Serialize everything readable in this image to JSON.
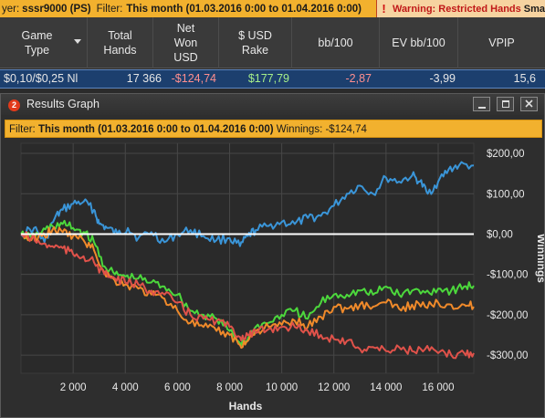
{
  "filterbar": {
    "player_label": "yer:",
    "player_name": "sssr9000 (PS)",
    "filter_label": "Filter:",
    "filter_value": "This month (01.03.2016 0:00 to 01.04.2016 0:00)",
    "warning_icon": "!",
    "warning": "Warning: Restricted Hands",
    "warning_cut": "Sma"
  },
  "table": {
    "columns": [
      {
        "label": "Game\nType"
      },
      {
        "label": "Total\nHands"
      },
      {
        "label": "Net\nWon\nUSD"
      },
      {
        "label": "$ USD\nRake"
      },
      {
        "label": "bb/100"
      },
      {
        "label": "EV bb/100"
      },
      {
        "label": "VPIP"
      }
    ],
    "row": {
      "game_type": "$0,10/$0,25 Nl",
      "total_hands": "17 366",
      "net_won": "-$124,74",
      "rake": "$177,79",
      "bb100": "-2,87",
      "ev_bb100": "-3,99",
      "vpip": "15,6"
    },
    "colors": {
      "negative": "#ff8f8f",
      "positive": "#a6ef8a"
    }
  },
  "window": {
    "badge": "2",
    "title": "Results Graph",
    "filter_label": "Filter:",
    "filter_value": "This month (01.03.2016 0:00 to 01.04.2016 0:00)",
    "winnings_label": "Winnings:",
    "winnings_value": "-$124,74"
  },
  "chart_data": {
    "type": "line",
    "xlabel": "Hands",
    "ylabel": "Winnings",
    "xlim": [
      0,
      17366
    ],
    "ylim": [
      -345,
      225
    ],
    "x_ticks": [
      2000,
      4000,
      6000,
      8000,
      10000,
      12000,
      14000,
      16000
    ],
    "x_tick_labels": [
      "2 000",
      "4 000",
      "6 000",
      "8 000",
      "10 000",
      "12 000",
      "14 000",
      "16 000"
    ],
    "y_ticks": [
      200,
      100,
      0,
      -100,
      -200,
      -300
    ],
    "y_tick_labels": [
      "$200,00",
      "$100,00",
      "$0,00",
      "-$100,00",
      "-$200,00",
      "-$300,00"
    ],
    "grid": true,
    "legend": "none",
    "series": [
      {
        "color": "#3a95d8",
        "x": [
          0,
          500,
          900,
          1300,
          1600,
          2000,
          2400,
          2800,
          3000,
          3300,
          3700,
          4100,
          4500,
          5000,
          5500,
          6000,
          6500,
          7000,
          7500,
          8000,
          8400,
          8700,
          9000,
          9500,
          10000,
          10500,
          11000,
          11500,
          12000,
          12500,
          13000,
          13500,
          14000,
          14500,
          15000,
          15300,
          15600,
          16000,
          16400,
          16800,
          17366
        ],
        "y": [
          0,
          15,
          -20,
          40,
          60,
          75,
          80,
          60,
          25,
          15,
          0,
          15,
          -10,
          5,
          -20,
          0,
          10,
          -5,
          -15,
          -10,
          -30,
          -5,
          10,
          20,
          30,
          25,
          40,
          45,
          70,
          100,
          120,
          100,
          140,
          130,
          145,
          130,
          100,
          130,
          160,
          170,
          170
        ]
      },
      {
        "color": "#4cd83c",
        "x": [
          0,
          400,
          800,
          1200,
          1600,
          2000,
          2400,
          2800,
          3200,
          3600,
          4000,
          4500,
          5000,
          5500,
          6000,
          6500,
          7000,
          7500,
          8000,
          8400,
          8700,
          9000,
          9500,
          10000,
          10500,
          11000,
          11500,
          12000,
          12500,
          13000,
          13500,
          14000,
          14500,
          15000,
          15500,
          16000,
          16500,
          17000,
          17366
        ],
        "y": [
          0,
          -10,
          5,
          20,
          25,
          15,
          5,
          -20,
          -80,
          -100,
          -105,
          -110,
          -120,
          -130,
          -150,
          -190,
          -200,
          -210,
          -240,
          -270,
          -260,
          -230,
          -220,
          -200,
          -190,
          -210,
          -170,
          -150,
          -150,
          -140,
          -150,
          -130,
          -150,
          -140,
          -145,
          -135,
          -140,
          -130,
          -128
        ]
      },
      {
        "color": "#f08a2a",
        "x": [
          0,
          400,
          800,
          1200,
          1600,
          2000,
          2400,
          2800,
          3200,
          3600,
          4000,
          4500,
          5000,
          5500,
          6000,
          6500,
          7000,
          7500,
          8000,
          8400,
          8700,
          9000,
          9500,
          10000,
          10500,
          11000,
          11500,
          12000,
          12500,
          13000,
          13500,
          14000,
          14500,
          15000,
          15500,
          16000,
          16500,
          17000,
          17366
        ],
        "y": [
          0,
          -15,
          -5,
          10,
          5,
          -5,
          -15,
          -40,
          -95,
          -115,
          -125,
          -135,
          -150,
          -160,
          -190,
          -220,
          -230,
          -240,
          -250,
          -275,
          -265,
          -240,
          -230,
          -225,
          -215,
          -230,
          -205,
          -180,
          -185,
          -175,
          -180,
          -170,
          -185,
          -175,
          -180,
          -170,
          -175,
          -175,
          -180
        ]
      },
      {
        "color": "#e0524a",
        "x": [
          0,
          400,
          800,
          1200,
          1600,
          2000,
          2400,
          2800,
          3200,
          3600,
          4000,
          4500,
          5000,
          5500,
          6000,
          6500,
          7000,
          7500,
          8000,
          8400,
          8700,
          9000,
          9500,
          10000,
          10500,
          11000,
          11500,
          12000,
          12500,
          13000,
          13500,
          14000,
          14500,
          15000,
          15500,
          16000,
          16500,
          17000,
          17366
        ],
        "y": [
          0,
          -10,
          -25,
          -30,
          -35,
          -50,
          -55,
          -70,
          -100,
          -110,
          -120,
          -125,
          -140,
          -150,
          -170,
          -200,
          -210,
          -215,
          -230,
          -255,
          -250,
          -245,
          -235,
          -230,
          -230,
          -240,
          -250,
          -260,
          -265,
          -285,
          -280,
          -290,
          -280,
          -290,
          -285,
          -295,
          -300,
          -295,
          -295
        ]
      }
    ]
  }
}
